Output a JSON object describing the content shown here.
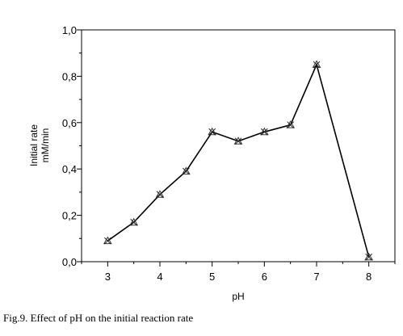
{
  "chart_data": {
    "type": "line",
    "x": [
      3,
      3.5,
      4,
      4.5,
      5,
      5.5,
      6,
      6.5,
      7,
      8
    ],
    "series": [
      {
        "values": [
          0.09,
          0.17,
          0.29,
          0.39,
          0.56,
          0.52,
          0.56,
          0.59,
          0.85,
          0.02
        ]
      }
    ],
    "xlabel": "pH",
    "ylabel_line1": "Initial rate",
    "ylabel_line2": "mM/min",
    "xlim": [
      2.5,
      8.5
    ],
    "ylim": [
      0,
      1.0
    ],
    "xticks": [
      "3",
      "4",
      "5",
      "6",
      "7",
      "8"
    ],
    "yticks": [
      "0,0",
      "0,2",
      "0,4",
      "0,6",
      "0,8",
      "1,0"
    ],
    "grid": false,
    "color": "#000000"
  },
  "caption": "Fig.9. Effect of pH on the initial reaction rate"
}
